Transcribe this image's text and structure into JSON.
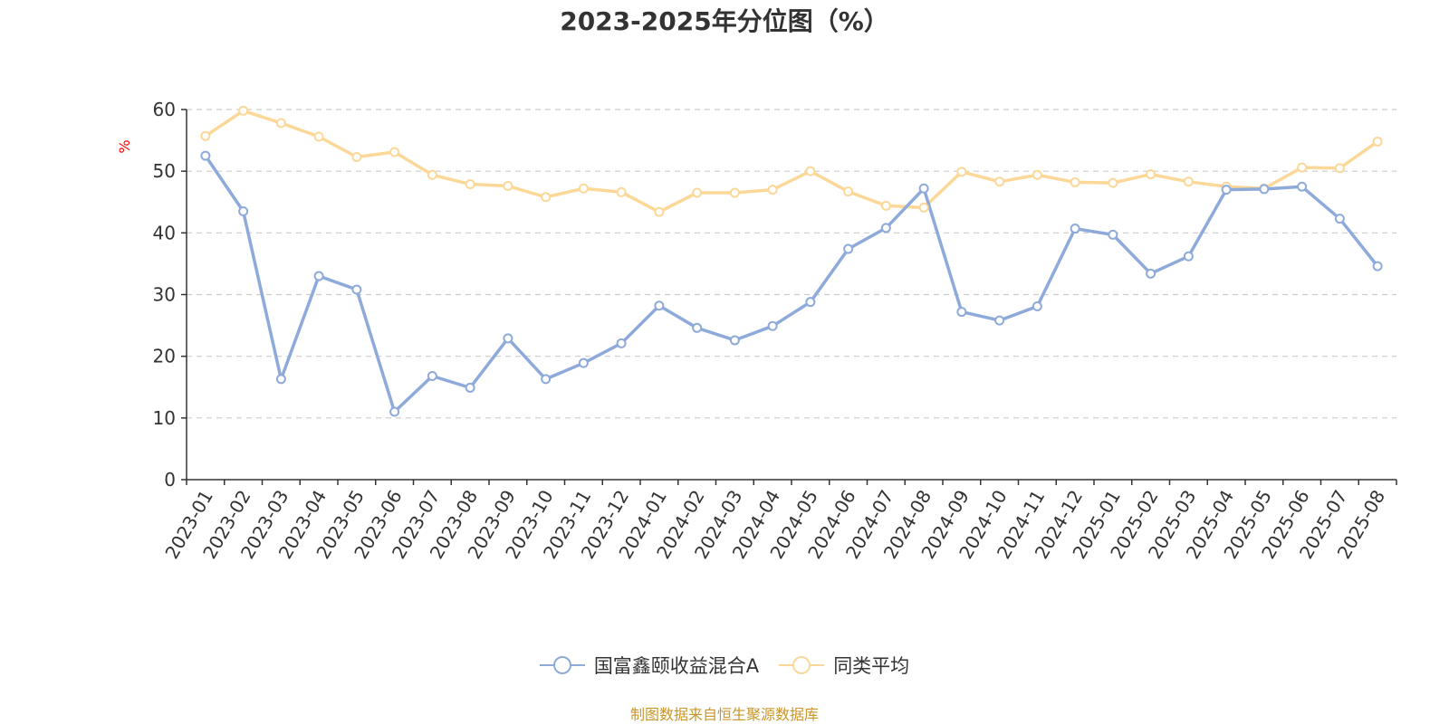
{
  "chart_data": {
    "type": "line",
    "title": "2023-2025年分位图（%）",
    "ylabel": "%",
    "xlabel": "",
    "ylim": [
      0,
      60
    ],
    "yticks": [
      0,
      10,
      20,
      30,
      40,
      50,
      60
    ],
    "grid": true,
    "legend_position": "bottom",
    "categories": [
      "2023-01",
      "2023-02",
      "2023-03",
      "2023-04",
      "2023-05",
      "2023-06",
      "2023-07",
      "2023-08",
      "2023-09",
      "2023-10",
      "2023-11",
      "2023-12",
      "2024-01",
      "2024-02",
      "2024-03",
      "2024-04",
      "2024-05",
      "2024-06",
      "2024-07",
      "2024-08",
      "2024-09",
      "2024-10",
      "2024-11",
      "2024-12",
      "2025-01",
      "2025-02",
      "2025-03",
      "2025-04",
      "2025-05",
      "2025-06",
      "2025-07",
      "2025-08"
    ],
    "series": [
      {
        "name": "国富鑫颐收益混合A",
        "color": "#8eaadb",
        "values": [
          52.5,
          43.5,
          16.3,
          33.0,
          30.8,
          11.0,
          16.8,
          14.9,
          22.9,
          16.3,
          18.9,
          22.1,
          28.2,
          24.6,
          22.6,
          24.9,
          28.8,
          37.4,
          40.8,
          47.2,
          27.2,
          25.8,
          28.1,
          40.7,
          39.7,
          33.4,
          36.2,
          47.0,
          47.1,
          47.5,
          42.3,
          34.6
        ]
      },
      {
        "name": "同类平均",
        "color": "#fbd898",
        "values": [
          55.7,
          59.8,
          57.8,
          55.6,
          52.3,
          53.1,
          49.4,
          47.9,
          47.6,
          45.8,
          47.2,
          46.6,
          43.4,
          46.5,
          46.5,
          47.0,
          50.0,
          46.7,
          44.4,
          44.1,
          49.9,
          48.3,
          49.4,
          48.2,
          48.1,
          49.5,
          48.3,
          47.5,
          47.2,
          50.6,
          50.5,
          54.8
        ]
      }
    ]
  },
  "footer": {
    "source": "制图数据来自恒生聚源数据库"
  }
}
